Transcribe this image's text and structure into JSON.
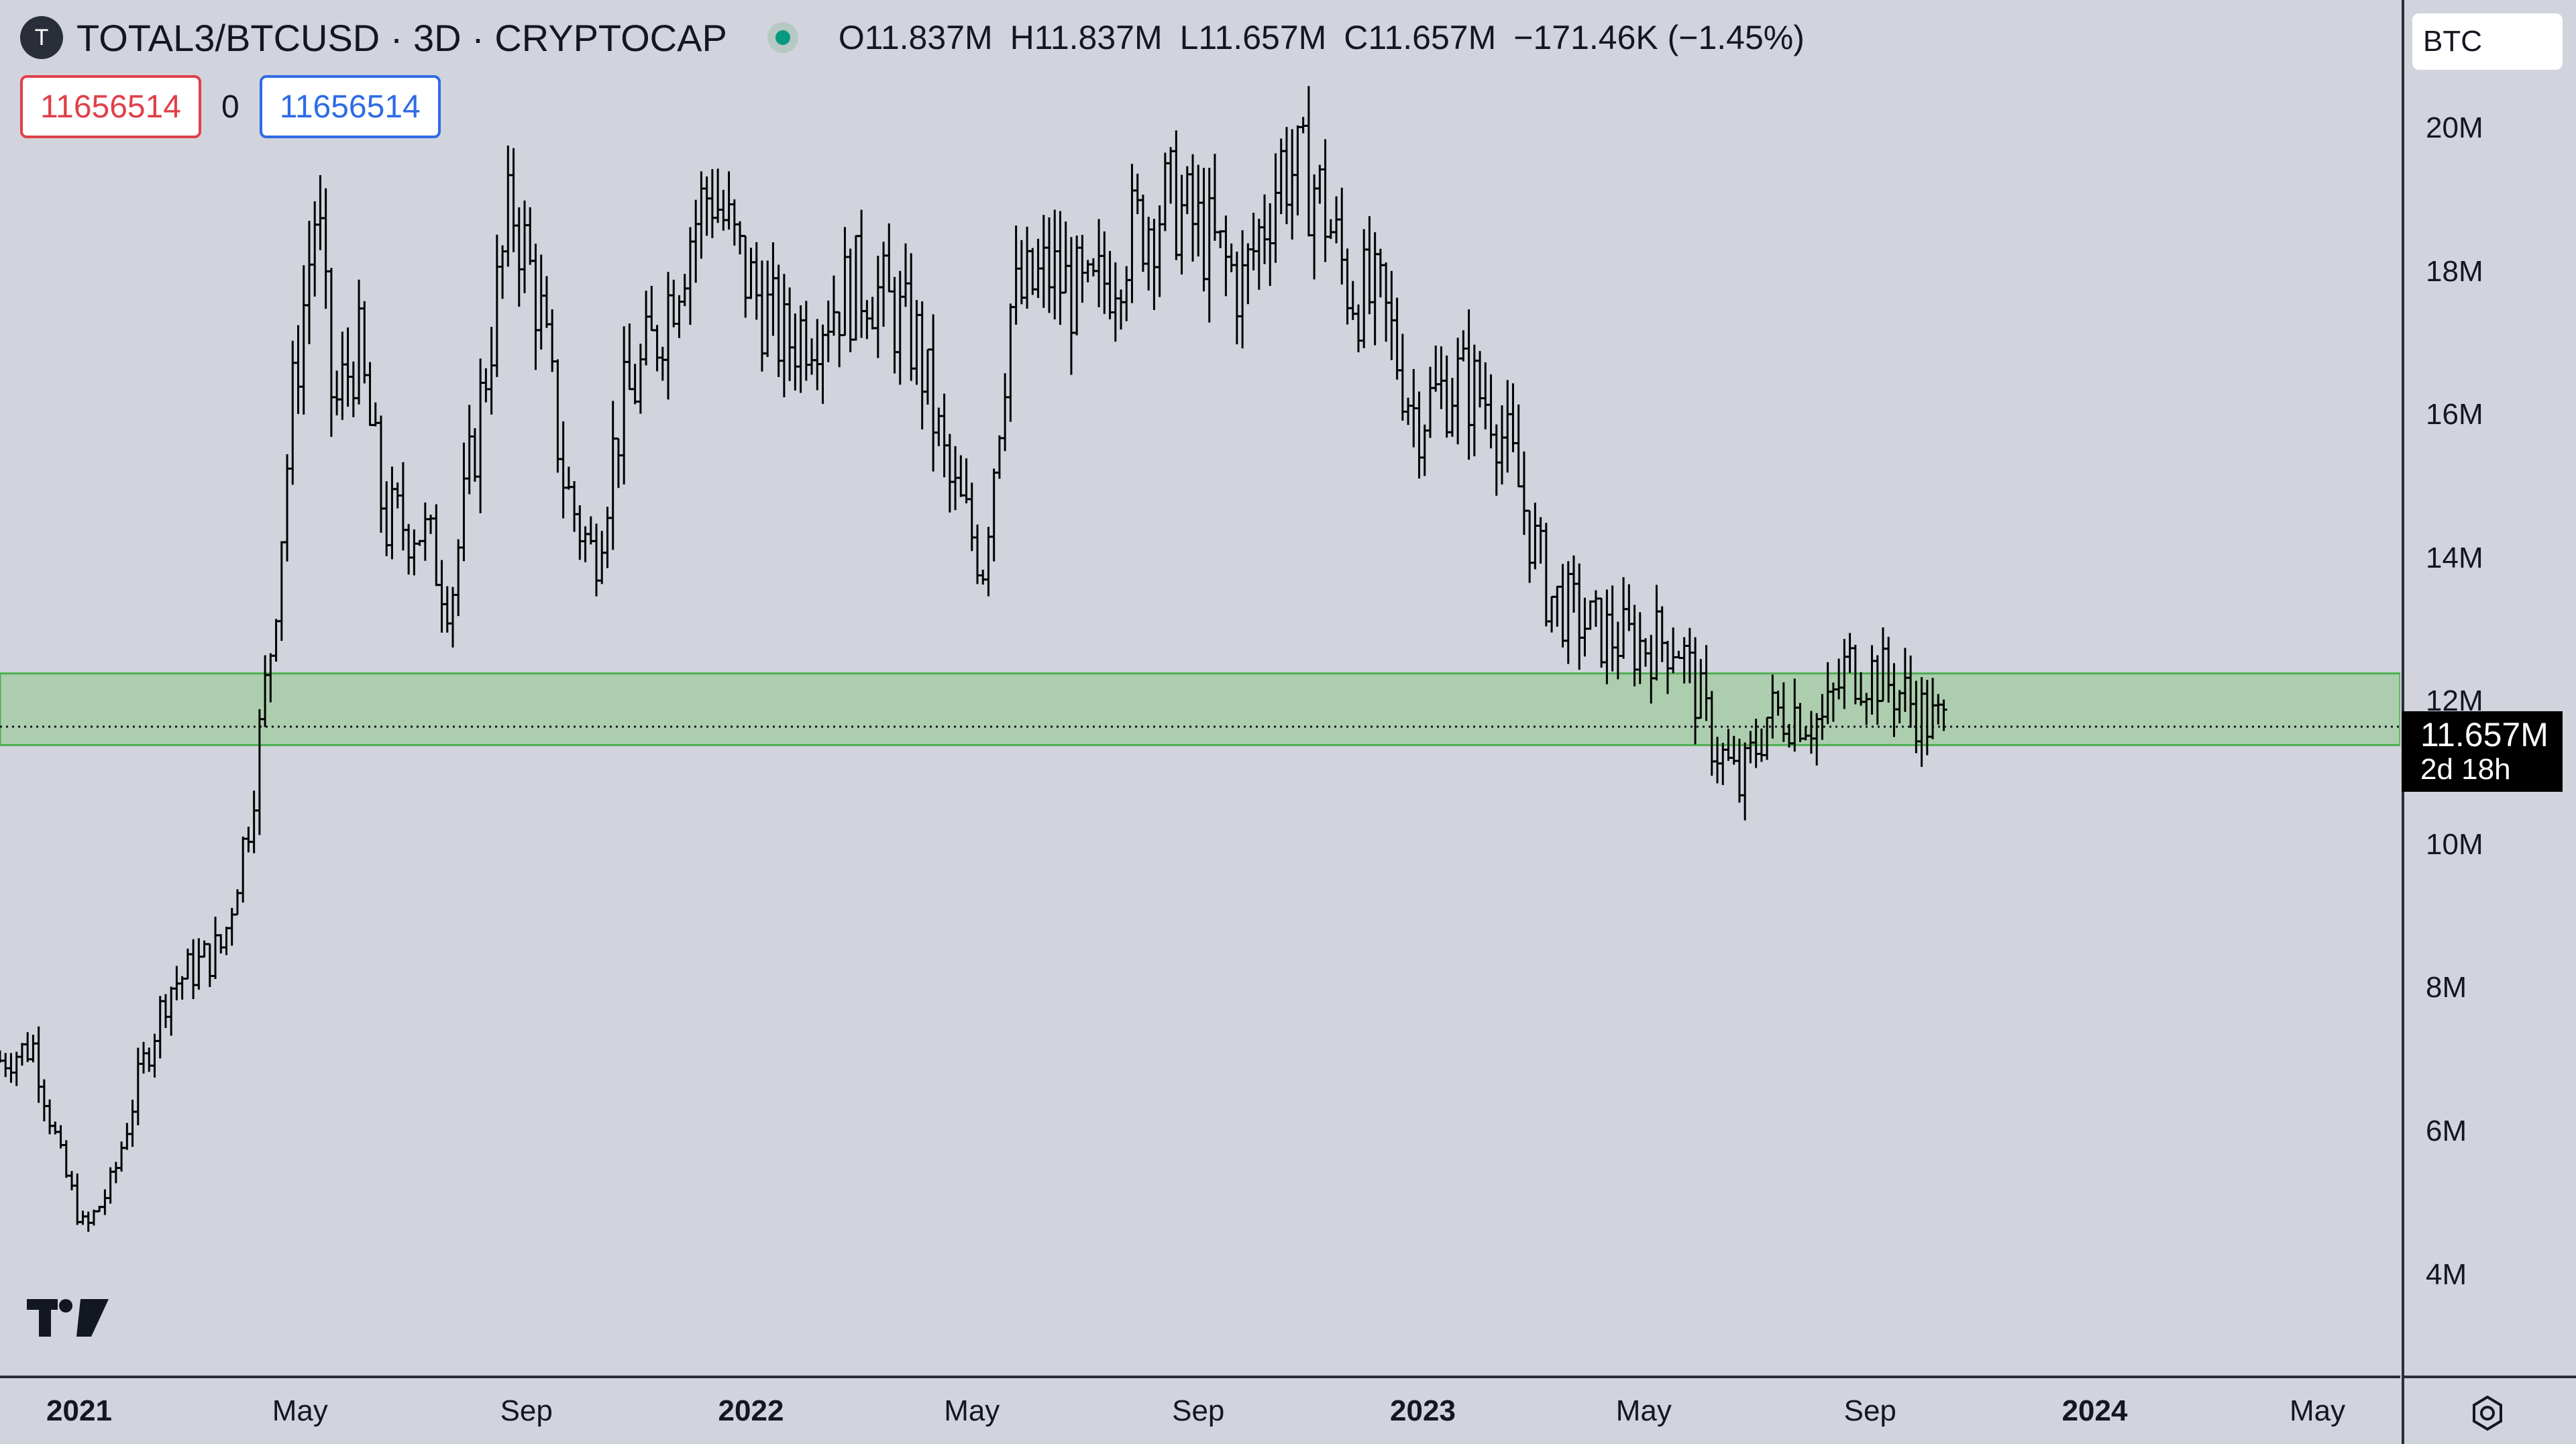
{
  "header": {
    "symbol_logo": "T",
    "symbol_title": "TOTAL3/BTCUSD · 3D · CRYPTOCAP",
    "status_color": "#089981",
    "ohlc": {
      "o_label": "O",
      "o_value": "11.837M",
      "h_label": "H",
      "h_value": "11.837M",
      "l_label": "L",
      "l_value": "11.657M",
      "c_label": "C",
      "c_value": "11.657M",
      "change": "−171.46K (−1.45%)"
    }
  },
  "order_panel": {
    "sell_price": "11656514",
    "quantity": "0",
    "buy_price": "11656514"
  },
  "currency_button": "BTC",
  "price_axis": {
    "ticks": [
      "20M",
      "18M",
      "16M",
      "14M",
      "12M",
      "10M",
      "8M",
      "6M",
      "4M"
    ],
    "last_price": "11.657M",
    "countdown": "2d 18h"
  },
  "time_axis": {
    "ticks": [
      {
        "label": "2021",
        "year": true
      },
      {
        "label": "May",
        "year": false
      },
      {
        "label": "Sep",
        "year": false
      },
      {
        "label": "2022",
        "year": true
      },
      {
        "label": "May",
        "year": false
      },
      {
        "label": "Sep",
        "year": false
      },
      {
        "label": "2023",
        "year": true
      },
      {
        "label": "May",
        "year": false
      },
      {
        "label": "Sep",
        "year": false
      },
      {
        "label": "2024",
        "year": true
      },
      {
        "label": "May",
        "year": false
      }
    ]
  },
  "colors": {
    "background": "#d1d4dc",
    "bars": "#000000",
    "zone_fill": "#a8cda8",
    "zone_border": "#4caf50",
    "sell": "#e0404a",
    "buy": "#2e6be6"
  },
  "chart_data": {
    "type": "ohlc-bar",
    "interval": "3D",
    "x_range": [
      "2020-11-19",
      "2024-06-15"
    ],
    "y_range": [
      2600000,
      21800000
    ],
    "zone": [
      11400000,
      12400000
    ],
    "last_price": 11656514,
    "close_path": [
      [
        "2020-11-19",
        7000000
      ],
      [
        "2020-12-07",
        7200000
      ],
      [
        "2020-12-22",
        5600000
      ],
      [
        "2021-01-04",
        4600000
      ],
      [
        "2021-01-19",
        5300000
      ],
      [
        "2021-02-03",
        6800000
      ],
      [
        "2021-02-18",
        8000000
      ],
      [
        "2021-03-05",
        8300000
      ],
      [
        "2021-03-20",
        8600000
      ],
      [
        "2021-04-04",
        10500000
      ],
      [
        "2021-04-16",
        13000000
      ],
      [
        "2021-04-28",
        16500000
      ],
      [
        "2021-05-10",
        19000000
      ],
      [
        "2021-05-19",
        16000000
      ],
      [
        "2021-06-01",
        17000000
      ],
      [
        "2021-06-16",
        14500000
      ],
      [
        "2021-07-04",
        14500000
      ],
      [
        "2021-07-22",
        13500000
      ],
      [
        "2021-08-06",
        16000000
      ],
      [
        "2021-08-24",
        19000000
      ],
      [
        "2021-09-08",
        17500000
      ],
      [
        "2021-09-22",
        15000000
      ],
      [
        "2021-10-07",
        14000000
      ],
      [
        "2021-10-22",
        16000000
      ],
      [
        "2021-11-09",
        17000000
      ],
      [
        "2021-11-28",
        18500000
      ],
      [
        "2021-12-10",
        19200000
      ],
      [
        "2021-12-28",
        18000000
      ],
      [
        "2022-01-19",
        17000000
      ],
      [
        "2022-02-10",
        17500000
      ],
      [
        "2022-03-05",
        17900000
      ],
      [
        "2022-04-01",
        17000000
      ],
      [
        "2022-04-19",
        15000000
      ],
      [
        "2022-05-07",
        14000000
      ],
      [
        "2022-05-22",
        17500000
      ],
      [
        "2022-06-12",
        18000000
      ],
      [
        "2022-07-04",
        17500000
      ],
      [
        "2022-07-25",
        18500000
      ],
      [
        "2022-08-16",
        19000000
      ],
      [
        "2022-09-04",
        18500000
      ],
      [
        "2022-09-25",
        17800000
      ],
      [
        "2022-10-16",
        19500000
      ],
      [
        "2022-11-04",
        19200000
      ],
      [
        "2022-11-22",
        17800000
      ],
      [
        "2022-12-10",
        17500000
      ],
      [
        "2022-12-28",
        16000000
      ],
      [
        "2023-01-19",
        16500000
      ],
      [
        "2023-02-07",
        16200000
      ],
      [
        "2023-02-22",
        15000000
      ],
      [
        "2023-03-10",
        13500000
      ],
      [
        "2023-04-04",
        13000000
      ],
      [
        "2023-04-28",
        12800000
      ],
      [
        "2023-05-19",
        12900000
      ],
      [
        "2023-06-07",
        11500000
      ],
      [
        "2023-06-22",
        10800000
      ],
      [
        "2023-07-07",
        11800000
      ],
      [
        "2023-07-22",
        11900000
      ],
      [
        "2023-08-07",
        11700000
      ],
      [
        "2023-08-19",
        12500000
      ],
      [
        "2023-09-04",
        12400000
      ],
      [
        "2023-09-19",
        12100000
      ],
      [
        "2023-10-04",
        11700000
      ],
      [
        "2023-10-13",
        11657000
      ]
    ]
  }
}
